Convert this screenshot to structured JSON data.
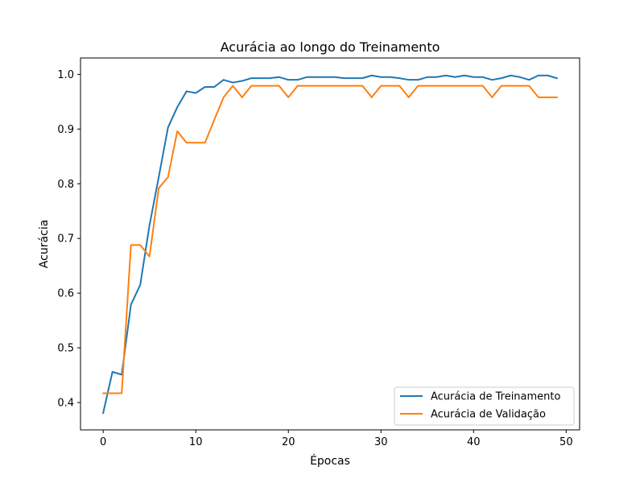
{
  "chart_data": {
    "type": "line",
    "title": "Acurácia ao longo do Treinamento",
    "xlabel": "Épocas",
    "ylabel": "Acurácia",
    "xlim": [
      -2.45,
      51.45
    ],
    "ylim": [
      0.35,
      1.03
    ],
    "xticks": [
      0,
      10,
      20,
      30,
      40,
      50
    ],
    "yticks": [
      0.4,
      0.5,
      0.6,
      0.7,
      0.8,
      0.9,
      1.0
    ],
    "ytick_labels": [
      "0.4",
      "0.5",
      "0.6",
      "0.7",
      "0.8",
      "0.9",
      "1.0"
    ],
    "grid": false,
    "legend_position": "lower right",
    "x": [
      0,
      1,
      2,
      3,
      4,
      5,
      6,
      7,
      8,
      9,
      10,
      11,
      12,
      13,
      14,
      15,
      16,
      17,
      18,
      19,
      20,
      21,
      22,
      23,
      24,
      25,
      26,
      27,
      28,
      29,
      30,
      31,
      32,
      33,
      34,
      35,
      36,
      37,
      38,
      39,
      40,
      41,
      42,
      43,
      44,
      45,
      46,
      47,
      48,
      49
    ],
    "series": [
      {
        "name": "Acurácia de Treinamento",
        "color": "#1f77b4",
        "values": [
          0.381,
          0.456,
          0.451,
          0.579,
          0.615,
          0.724,
          0.812,
          0.903,
          0.94,
          0.969,
          0.966,
          0.977,
          0.977,
          0.99,
          0.985,
          0.988,
          0.993,
          0.993,
          0.993,
          0.995,
          0.99,
          0.99,
          0.995,
          0.995,
          0.995,
          0.995,
          0.993,
          0.993,
          0.993,
          0.998,
          0.995,
          0.995,
          0.993,
          0.99,
          0.99,
          0.995,
          0.995,
          0.998,
          0.995,
          0.998,
          0.995,
          0.995,
          0.99,
          0.993,
          0.998,
          0.995,
          0.99,
          0.998,
          0.998,
          0.993
        ]
      },
      {
        "name": "Acurácia de Validação",
        "color": "#ff7f0e",
        "values": [
          0.417,
          0.417,
          0.417,
          0.688,
          0.688,
          0.667,
          0.792,
          0.812,
          0.896,
          0.875,
          0.875,
          0.875,
          0.917,
          0.958,
          0.979,
          0.958,
          0.979,
          0.979,
          0.979,
          0.979,
          0.958,
          0.979,
          0.979,
          0.979,
          0.979,
          0.979,
          0.979,
          0.979,
          0.979,
          0.958,
          0.979,
          0.979,
          0.979,
          0.958,
          0.979,
          0.979,
          0.979,
          0.979,
          0.979,
          0.979,
          0.979,
          0.979,
          0.958,
          0.979,
          0.979,
          0.979,
          0.979,
          0.958,
          0.958,
          0.958
        ]
      }
    ]
  }
}
